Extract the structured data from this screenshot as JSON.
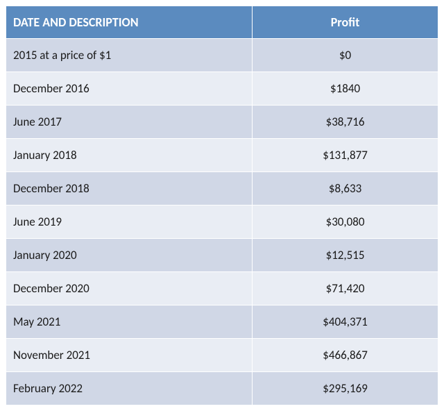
{
  "table": {
    "header_bg": "#5b8bbf",
    "header_fg": "#ffffff",
    "row_bg_a": "#d0d7e6",
    "row_bg_b": "#e9edf4",
    "row_fg": "#1a1a1a",
    "columns": [
      {
        "key": "desc",
        "label": "DATE AND DESCRIPTION",
        "align": "left",
        "width": "57%"
      },
      {
        "key": "profit",
        "label": "Profit",
        "align": "center",
        "width": "43%"
      }
    ],
    "rows": [
      {
        "desc": "2015 at a price of $1",
        "profit": "$0"
      },
      {
        "desc": "December 2016",
        "profit": "$1840"
      },
      {
        "desc": "June 2017",
        "profit": "$38,716"
      },
      {
        "desc": "January 2018",
        "profit": "$131,877"
      },
      {
        "desc": "December 2018",
        "profit": "$8,633"
      },
      {
        "desc": "June 2019",
        "profit": "$30,080"
      },
      {
        "desc": "January 2020",
        "profit": "$12,515"
      },
      {
        "desc": "December 2020",
        "profit": "$71,420"
      },
      {
        "desc": "May 2021",
        "profit": "$404,371"
      },
      {
        "desc": "November 2021",
        "profit": "$466,867"
      },
      {
        "desc": "February 2022",
        "profit": "$295,169"
      }
    ]
  }
}
